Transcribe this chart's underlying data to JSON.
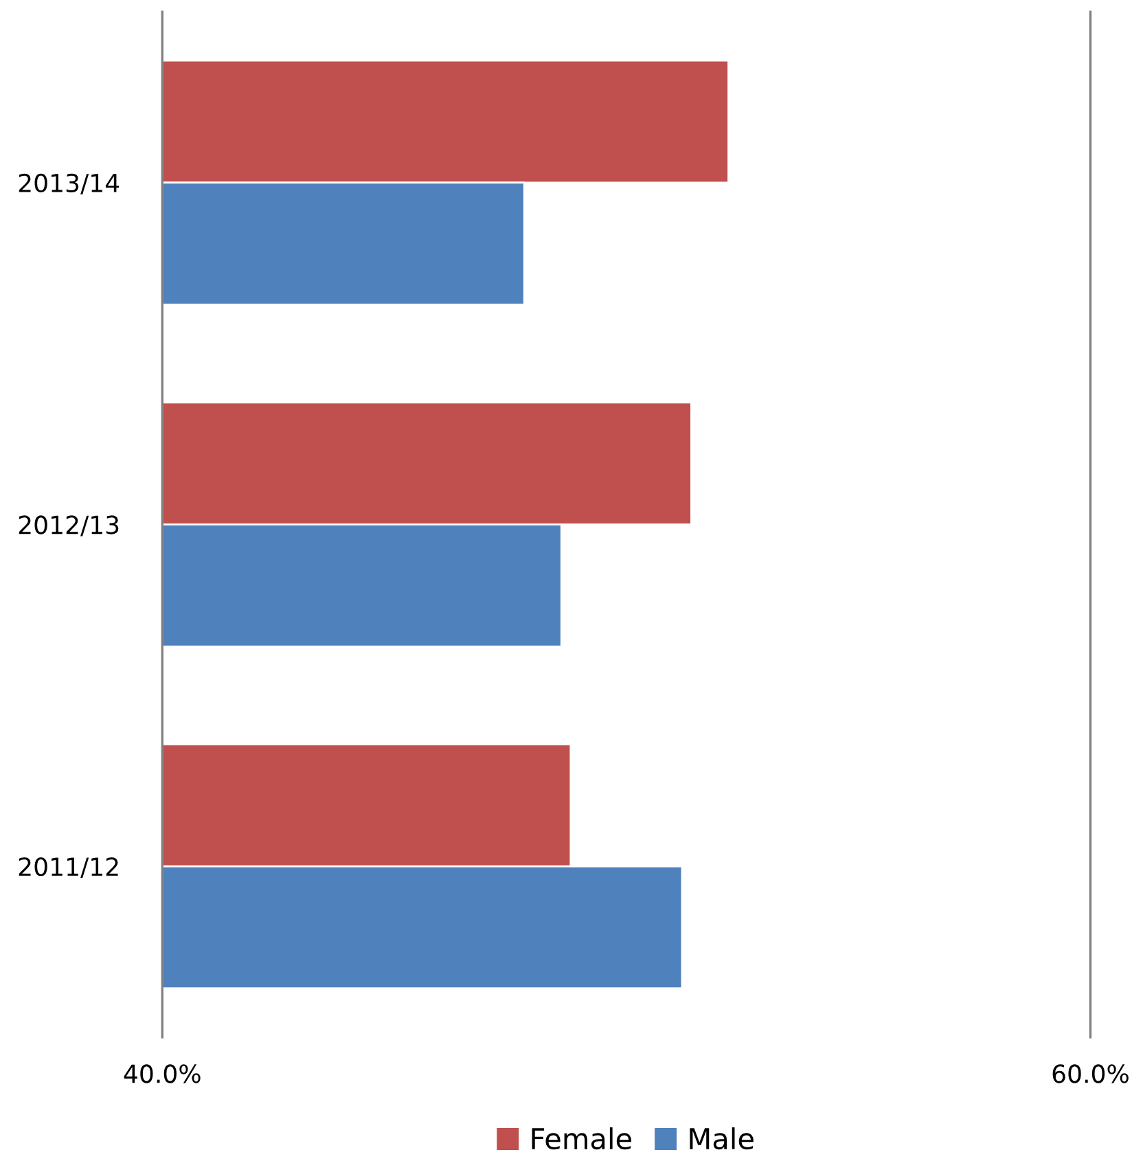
{
  "chart_data": {
    "type": "bar",
    "orientation": "horizontal",
    "categories": [
      "2013/14",
      "2012/13",
      "2011/12"
    ],
    "series": [
      {
        "name": "Female",
        "color": "#c0504d",
        "values": [
          52.2,
          51.4,
          48.8
        ]
      },
      {
        "name": "Male",
        "color": "#4f81bd",
        "values": [
          47.8,
          48.6,
          51.2
        ]
      }
    ],
    "xlim": [
      40,
      60
    ],
    "xticks": [
      {
        "value": 40,
        "label": "40.0%"
      },
      {
        "value": 60,
        "label": "60.0%"
      }
    ],
    "legend": "bottom"
  }
}
